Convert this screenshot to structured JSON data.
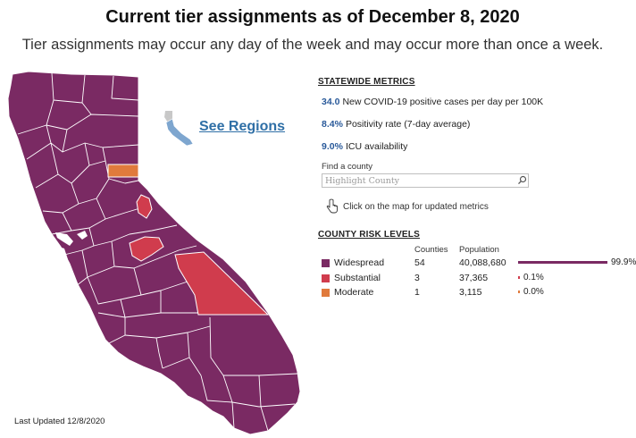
{
  "header": {
    "title": "Current tier assignments as of December 8, 2020",
    "subtitle": "Tier assignments may occur any day of the week and may occur more than once a week."
  },
  "map": {
    "see_regions_label": "See Regions",
    "colors": {
      "widespread": "#7a2a63",
      "substantial": "#d03c4d",
      "moderate": "#e07a3c",
      "county_border": "#ffffff",
      "mini_map_blue": "#7ea6cf",
      "mini_map_gray": "#c8c8c8"
    }
  },
  "metrics": {
    "heading": "STATEWIDE METRICS",
    "items": [
      {
        "value": "34.0",
        "label": "New COVID-19 positive cases per day per 100K"
      },
      {
        "value": "8.4%",
        "label": "Positivity rate (7-day average)"
      },
      {
        "value": "9.0%",
        "label": "ICU availability"
      }
    ]
  },
  "search": {
    "label": "Find a county",
    "placeholder": "Highlight County",
    "click_note": "Click on the map for updated metrics"
  },
  "risk_levels": {
    "heading": "COUNTY RISK LEVELS",
    "col_counties": "Counties",
    "col_population": "Population",
    "rows": [
      {
        "name": "Widespread",
        "counties": "54",
        "population": "40,088,680",
        "percent": "99.9%",
        "share": 0.999,
        "color": "#7a2a63"
      },
      {
        "name": "Substantial",
        "counties": "3",
        "population": "37,365",
        "percent": "0.1%",
        "share": 0.001,
        "color": "#d03c4d"
      },
      {
        "name": "Moderate",
        "counties": "1",
        "population": "3,115",
        "percent": "0.0%",
        "share": 0.0,
        "color": "#e07a3c"
      }
    ]
  },
  "footer": {
    "last_updated": "Last Updated 12/8/2020"
  }
}
